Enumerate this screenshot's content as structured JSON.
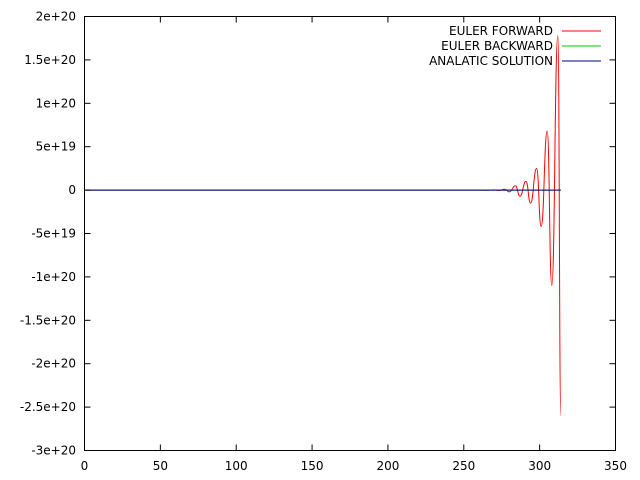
{
  "chart_data": {
    "type": "line",
    "title": "",
    "xlabel": "",
    "ylabel": "",
    "xlim": [
      0,
      350
    ],
    "ylim": [
      -3e+20,
      2e+20
    ],
    "x_ticks": [
      0,
      50,
      100,
      150,
      200,
      250,
      300,
      350
    ],
    "x_tick_labels": [
      "0",
      "50",
      "100",
      "150",
      "200",
      "250",
      "300",
      "350"
    ],
    "y_ticks": [
      2e+20,
      1.5e+20,
      1e+20,
      5e+19,
      0,
      -5e+19,
      -1e+20,
      -1.5e+20,
      -2e+20,
      -2.5e+20,
      -3e+20
    ],
    "y_tick_labels": [
      "2e+20",
      "1.5e+20",
      "1e+20",
      "5e+19",
      "0",
      "-5e+19",
      "-1e+20",
      "-1.5e+20",
      "-2e+20",
      "-2.5e+20",
      "-3e+20"
    ],
    "grid": false,
    "legend_position": "top-right",
    "series": [
      {
        "name": "EULER FORWARD",
        "color": "#ff0000",
        "x": [
          0,
          200,
          260,
          266,
          270,
          273,
          277,
          280,
          284,
          287,
          291,
          294,
          298,
          301,
          305,
          308,
          312,
          314
        ],
        "y": [
          0,
          0,
          0,
          -2e+17,
          3e+17,
          -5e+17,
          1e+18,
          -2e+18,
          5e+18,
          -7e+18,
          1e+19,
          -1.5e+19,
          2.5e+19,
          -4.2e+19,
          6.8e+19,
          -1.1e+20,
          1.78e+20,
          -2.6e+20
        ]
      },
      {
        "name": "EULER BACKWARD",
        "color": "#00cc00",
        "x": [
          0,
          314
        ],
        "y": [
          0,
          0
        ]
      },
      {
        "name": "ANALATIC SOLUTION",
        "color": "#00008b",
        "x": [
          0,
          314
        ],
        "y": [
          0,
          0
        ]
      }
    ]
  }
}
